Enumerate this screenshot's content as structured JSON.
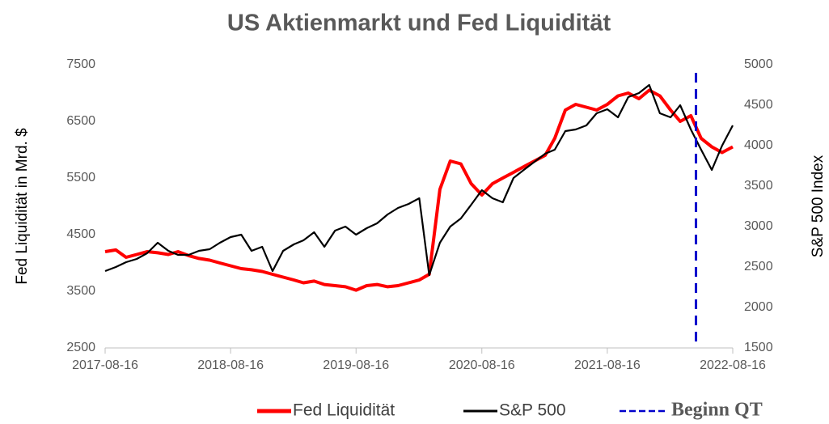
{
  "chart_data": {
    "type": "line",
    "title": "US Aktienmarkt und Fed Liquidität",
    "ylabel": "Fed Liquidität in Mrd. $",
    "y2label": "S&P 500 Index",
    "x": [
      "2017-08-16",
      "2017-09-16",
      "2017-10-16",
      "2017-11-16",
      "2017-12-16",
      "2018-01-16",
      "2018-02-16",
      "2018-03-16",
      "2018-04-16",
      "2018-05-16",
      "2018-06-16",
      "2018-07-16",
      "2018-08-16",
      "2018-09-16",
      "2018-10-16",
      "2018-11-16",
      "2018-12-16",
      "2019-01-16",
      "2019-02-16",
      "2019-03-16",
      "2019-04-16",
      "2019-05-16",
      "2019-06-16",
      "2019-07-16",
      "2019-08-16",
      "2019-09-16",
      "2019-10-16",
      "2019-11-16",
      "2019-12-16",
      "2020-01-16",
      "2020-02-16",
      "2020-03-16",
      "2020-04-16",
      "2020-05-16",
      "2020-06-16",
      "2020-07-16",
      "2020-08-16",
      "2020-09-16",
      "2020-10-16",
      "2020-11-16",
      "2020-12-16",
      "2021-01-16",
      "2021-02-16",
      "2021-03-16",
      "2021-04-16",
      "2021-05-16",
      "2021-06-16",
      "2021-07-16",
      "2021-08-16",
      "2021-09-16",
      "2021-10-16",
      "2021-11-16",
      "2021-12-16",
      "2022-01-16",
      "2022-02-16",
      "2022-03-16",
      "2022-04-16",
      "2022-05-16",
      "2022-06-16",
      "2022-07-16",
      "2022-08-16"
    ],
    "series": [
      {
        "name": "Fed Liquidität",
        "color": "#ff0000",
        "axis": "y",
        "values": [
          4200,
          4230,
          4100,
          4150,
          4200,
          4180,
          4150,
          4200,
          4130,
          4080,
          4050,
          4000,
          3950,
          3900,
          3880,
          3850,
          3800,
          3750,
          3700,
          3650,
          3680,
          3620,
          3600,
          3580,
          3520,
          3600,
          3620,
          3580,
          3600,
          3650,
          3700,
          3800,
          5300,
          5800,
          5750,
          5400,
          5200,
          5400,
          5500,
          5600,
          5700,
          5800,
          5900,
          6200,
          6700,
          6800,
          6750,
          6700,
          6800,
          6950,
          7000,
          6900,
          7050,
          6950,
          6700,
          6500,
          6600,
          6200,
          6050,
          5950,
          6050
        ]
      },
      {
        "name": "S&P 500",
        "color": "#000000",
        "axis": "y2",
        "values": [
          2450,
          2500,
          2560,
          2600,
          2670,
          2800,
          2700,
          2650,
          2650,
          2700,
          2720,
          2800,
          2870,
          2900,
          2700,
          2750,
          2450,
          2700,
          2780,
          2830,
          2930,
          2750,
          2950,
          3000,
          2900,
          2980,
          3040,
          3150,
          3230,
          3280,
          3350,
          2400,
          2800,
          3000,
          3100,
          3270,
          3450,
          3350,
          3300,
          3600,
          3700,
          3800,
          3900,
          3950,
          4180,
          4200,
          4250,
          4400,
          4450,
          4350,
          4600,
          4650,
          4750,
          4400,
          4350,
          4500,
          4200,
          3950,
          3700,
          4000,
          4250
        ]
      }
    ],
    "xlim": [
      "2017-08-16",
      "2022-08-16"
    ],
    "xticks": [
      "2017-08-16",
      "2018-08-16",
      "2019-08-16",
      "2020-08-16",
      "2021-08-16",
      "2022-08-16"
    ],
    "ylim": [
      2500,
      7500
    ],
    "yticks": [
      2500,
      3500,
      4500,
      5500,
      6500,
      7500
    ],
    "y2lim": [
      1500,
      5000
    ],
    "y2ticks": [
      1500,
      2000,
      2500,
      3000,
      3500,
      4000,
      4500,
      5000
    ],
    "vline": {
      "name": "Beginn QT",
      "x": "2022-05-01",
      "color": "#0000cc"
    }
  }
}
